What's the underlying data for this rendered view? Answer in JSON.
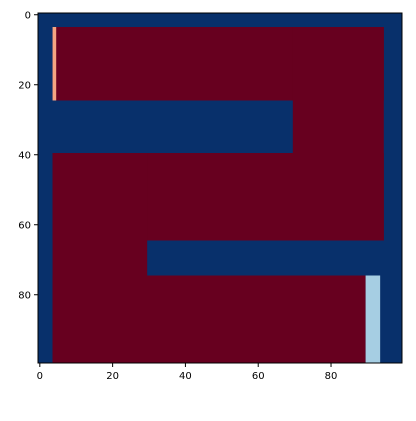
{
  "chart_data": {
    "type": "heatmap",
    "title": "",
    "xlabel": "",
    "ylabel": "",
    "grid_size": [
      100,
      100
    ],
    "xlim": [
      -0.5,
      99.5
    ],
    "ylim": [
      99.5,
      -0.5
    ],
    "y_axis_inverted": true,
    "x_ticks": [
      0,
      20,
      40,
      60,
      80
    ],
    "y_ticks": [
      0,
      20,
      40,
      60,
      80
    ],
    "x_tick_labels": [
      "0",
      "20",
      "40",
      "60",
      "80"
    ],
    "y_tick_labels": [
      "0",
      "20",
      "40",
      "60",
      "80"
    ],
    "grid": false,
    "colormap": "RdBu",
    "background_value_color": "#08306b",
    "regions": [
      {
        "name": "upper-red-block",
        "x": [
          4,
          94
        ],
        "y": [
          4,
          24
        ],
        "color": "#67001f"
      },
      {
        "name": "right-red-column",
        "x": [
          70,
          94
        ],
        "y": [
          4,
          64
        ],
        "color": "#67001f"
      },
      {
        "name": "middle-red-band",
        "x": [
          4,
          94
        ],
        "y": [
          40,
          64
        ],
        "color": "#67001f"
      },
      {
        "name": "left-red-column",
        "x": [
          4,
          29
        ],
        "y": [
          40,
          99
        ],
        "color": "#67001f"
      },
      {
        "name": "lower-red-band",
        "x": [
          4,
          89
        ],
        "y": [
          75,
          99
        ],
        "color": "#67001f"
      },
      {
        "name": "start-marker",
        "x": [
          4,
          4
        ],
        "y": [
          4,
          24
        ],
        "color": "#f4a582"
      },
      {
        "name": "end-marker",
        "x": [
          90,
          93
        ],
        "y": [
          75,
          99
        ],
        "color": "#a6cee3"
      }
    ]
  }
}
